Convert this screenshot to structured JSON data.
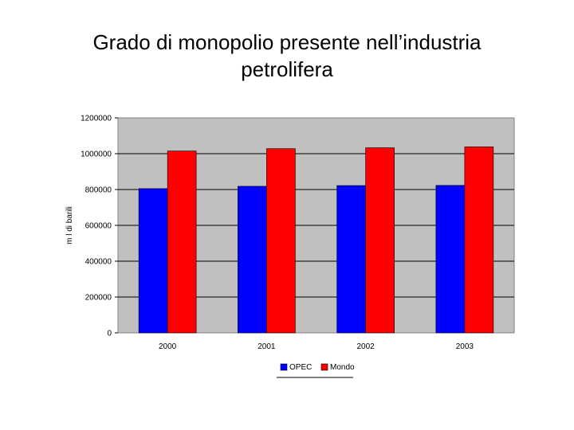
{
  "title": {
    "line1": "Grado di monopolio presente nell’industria",
    "line2": "petrolifera"
  },
  "chart_data": {
    "type": "bar",
    "categories": [
      "2000",
      "2001",
      "2002",
      "2003"
    ],
    "series": [
      {
        "name": "OPEC",
        "color": "#0000ff",
        "values": [
          805000,
          818000,
          822000,
          823000
        ]
      },
      {
        "name": "Mondo",
        "color": "#ff0000",
        "values": [
          1015000,
          1028000,
          1033000,
          1038000
        ]
      }
    ],
    "ylabel": "m l di barili",
    "ylim": [
      0,
      1200000
    ],
    "yticks": [
      "0",
      "200000",
      "400000",
      "600000",
      "800000",
      "1000000",
      "1200000"
    ],
    "grid": true,
    "legend": "bottom",
    "plot_background": "#c0c0c0"
  }
}
